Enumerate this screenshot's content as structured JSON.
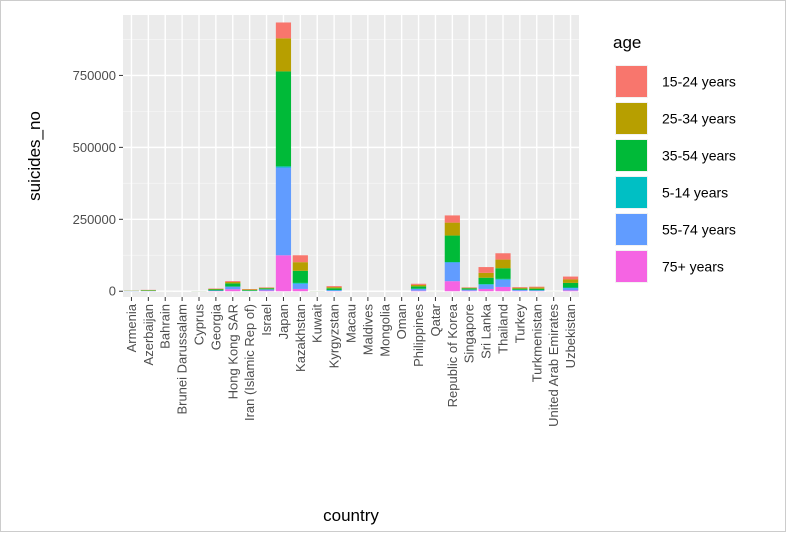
{
  "chart_data": {
    "type": "bar",
    "stacked": true,
    "xlabel": "country",
    "ylabel": "suicides_no",
    "ylim": [
      -20000,
      960000
    ],
    "y_ticks": [
      0,
      250000,
      500000,
      750000
    ],
    "y_tick_labels": [
      "0",
      "250000",
      "500000",
      "750000"
    ],
    "grid": true,
    "legend_placement": "right",
    "legend_title": "age",
    "categories": [
      "Armenia",
      "Azerbaijan",
      "Bahrain",
      "Brunei Darussalam",
      "Cyprus",
      "Georgia",
      "Hong Kong SAR",
      "Iran (Islamic Rep of)",
      "Israel",
      "Japan",
      "Kazakhstan",
      "Kuwait",
      "Kyrgyzstan",
      "Macau",
      "Maldives",
      "Mongolia",
      "Oman",
      "Philippines",
      "Qatar",
      "Republic of Korea",
      "Singapore",
      "Sri Lanka",
      "Thailand",
      "Turkey",
      "Turkmenistan",
      "United Arab Emirates",
      "Uzbekistan"
    ],
    "series": [
      {
        "name": "75+ years",
        "color": "#F564E3",
        "values": [
          200,
          300,
          0,
          0,
          50,
          800,
          7000,
          400,
          2500,
          125000,
          8000,
          50,
          800,
          0,
          0,
          0,
          0,
          2000,
          10,
          35000,
          2000,
          8000,
          15000,
          1500,
          800,
          20,
          3000
        ]
      },
      {
        "name": "55-74 years",
        "color": "#619CFF",
        "values": [
          500,
          900,
          20,
          10,
          150,
          1800,
          9000,
          800,
          4000,
          305000,
          18000,
          100,
          2500,
          0,
          0,
          0,
          5,
          6000,
          30,
          65000,
          3500,
          15000,
          25000,
          3000,
          2500,
          60,
          8000
        ]
      },
      {
        "name": "5-14 years",
        "color": "#00BFC4",
        "values": [
          30,
          100,
          5,
          0,
          10,
          100,
          300,
          300,
          100,
          4000,
          3000,
          10,
          1000,
          0,
          0,
          0,
          5,
          1000,
          5,
          1500,
          200,
          2000,
          3000,
          500,
          500,
          10,
          2000
        ]
      },
      {
        "name": "35-54 years",
        "color": "#00BA38",
        "values": [
          700,
          1500,
          40,
          20,
          250,
          3500,
          11000,
          2500,
          3500,
          330000,
          42000,
          250,
          6000,
          0,
          0,
          0,
          10,
          8000,
          80,
          92000,
          4500,
          22000,
          37000,
          4000,
          5000,
          100,
          16000
        ]
      },
      {
        "name": "25-34 years",
        "color": "#B79F00",
        "values": [
          400,
          1300,
          30,
          15,
          150,
          1800,
          5000,
          2000,
          2000,
          115000,
          30000,
          150,
          4000,
          0,
          0,
          0,
          10,
          5000,
          70,
          45000,
          2000,
          17000,
          30000,
          3000,
          4000,
          100,
          12000
        ]
      },
      {
        "name": "15-24 years",
        "color": "#F8766D",
        "values": [
          300,
          700,
          20,
          10,
          100,
          1500,
          3000,
          1500,
          1500,
          55000,
          24000,
          100,
          3500,
          0,
          0,
          0,
          10,
          4000,
          40,
          25000,
          1500,
          20000,
          22000,
          2500,
          3000,
          50,
          10000
        ]
      }
    ],
    "legend_order": [
      "15-24 years",
      "25-34 years",
      "35-54 years",
      "5-14 years",
      "55-74 years",
      "75+ years"
    ]
  }
}
